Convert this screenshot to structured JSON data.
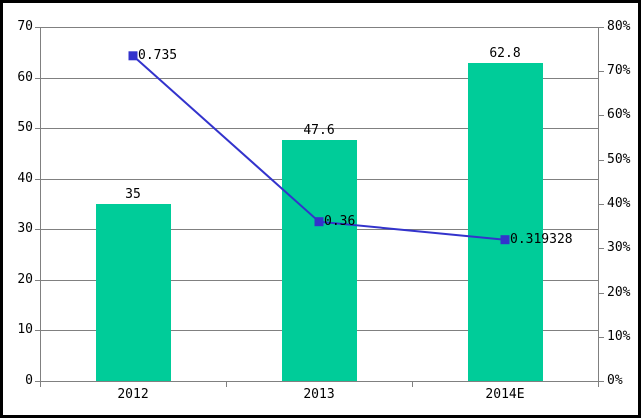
{
  "chart_data": {
    "type": "bar",
    "subtype": "bar-line-combo",
    "title": "",
    "xlabel": "",
    "ylabel": "",
    "legend": false,
    "grid": true,
    "categories": [
      "2012",
      "2013",
      "2014E"
    ],
    "series": [
      {
        "name": "bar-series",
        "type": "bar",
        "axis": "left",
        "values": [
          35,
          47.6,
          62.8
        ],
        "labels": [
          "35",
          "47.6",
          "62.8"
        ],
        "color": "#00CC99"
      },
      {
        "name": "line-series",
        "type": "line",
        "axis": "right",
        "values": [
          0.735,
          0.36,
          0.319328
        ],
        "labels": [
          "0.735",
          "0.36",
          "0.319328"
        ],
        "color": "#3333CC",
        "marker": "square"
      }
    ],
    "left_axis": {
      "min": 0,
      "max": 70,
      "step": 10,
      "tick_labels": [
        "0",
        "10",
        "20",
        "30",
        "40",
        "50",
        "60",
        "70"
      ]
    },
    "right_axis": {
      "min": 0,
      "max": 0.8,
      "step": 0.1,
      "tick_labels": [
        "0%",
        "10%",
        "20%",
        "30%",
        "40%",
        "50%",
        "60%",
        "70%",
        "80%"
      ]
    },
    "colors": {
      "grid": "#808080",
      "axis": "#808080",
      "text": "#000000",
      "background": "#FFFFFF",
      "frame_border": "#000000"
    }
  }
}
